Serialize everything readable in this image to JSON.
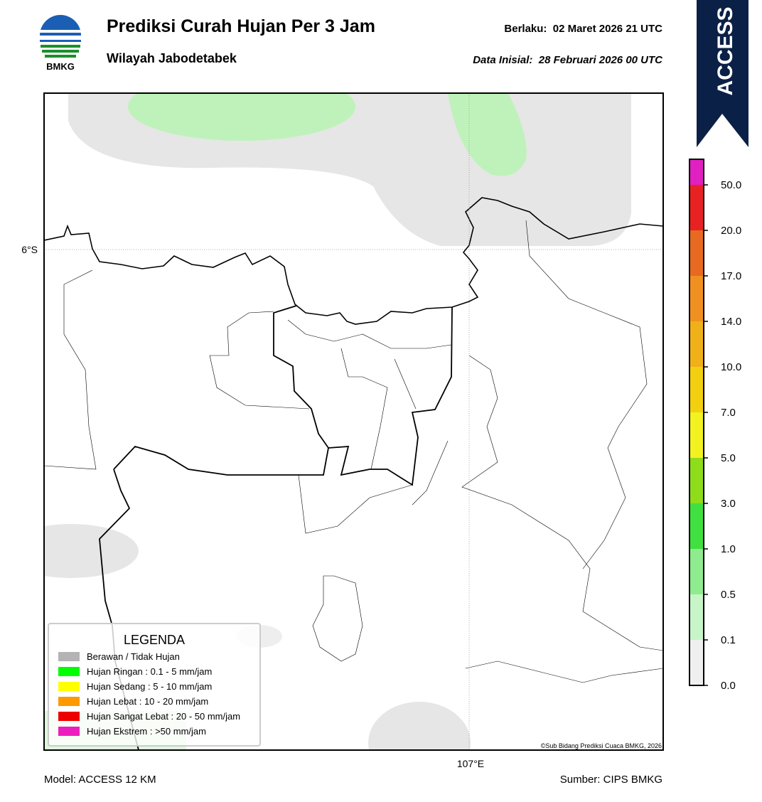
{
  "header": {
    "logo_text": "BMKG",
    "title": "Prediksi Curah Hujan Per 3 Jam",
    "subtitle": "Wilayah Jabodetabek",
    "valid": "Berlaku:  02 Maret 2026 21 UTC",
    "init": "Data Inisial:  28 Februari 2026 00 UTC",
    "badge": "ACCESS"
  },
  "map": {
    "lat_label": "6°S",
    "lon_label": "107°E",
    "copyright": "©Sub Bidang Prediksi Cuaca BMKG, 2026"
  },
  "legend": {
    "title": "LEGENDA",
    "items": [
      {
        "label": "Berawan / Tidak Hujan",
        "color": "#b4b4b4"
      },
      {
        "label": "Hujan Ringan : 0.1 - 5 mm/jam",
        "color": "#00ff00"
      },
      {
        "label": "Hujan Sedang : 5 - 10 mm/jam",
        "color": "#ffff00"
      },
      {
        "label": "Hujan Lebat : 10 - 20 mm/jam",
        "color": "#ff9900"
      },
      {
        "label": "Hujan Sangat Lebat : 20 - 50 mm/jam",
        "color": "#ee0000"
      },
      {
        "label": "Hujan Ekstrem : >50 mm/jam",
        "color": "#ee1ebe"
      }
    ]
  },
  "colorbar": {
    "ticks": [
      "0.0",
      "0.1",
      "0.5",
      "1.0",
      "3.0",
      "5.0",
      "7.0",
      "10.0",
      "14.0",
      "17.0",
      "20.0",
      "50.0"
    ],
    "colors": [
      "#efefef",
      "#c8f5c8",
      "#8eec8e",
      "#3fe03f",
      "#8edc1a",
      "#f2f220",
      "#f2d010",
      "#f0b018",
      "#f09020",
      "#e86a20",
      "#e82222",
      "#e020c0"
    ]
  },
  "footer": {
    "model": "Model: ACCESS 12 KM",
    "source": "Sumber: CIPS BMKG"
  }
}
